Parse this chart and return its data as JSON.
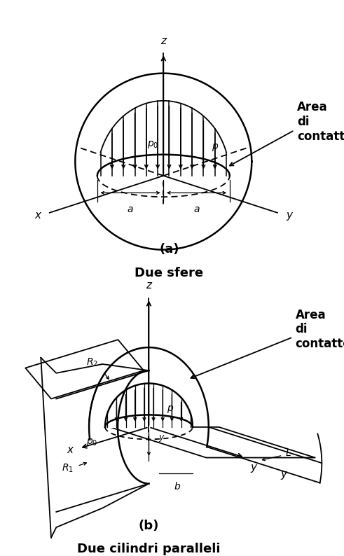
{
  "fig_width": 4.91,
  "fig_height": 7.94,
  "dpi": 100,
  "bg_color": "#ffffff",
  "label_a": "(a)",
  "label_a_title": "Due sfere",
  "label_b": "(b)",
  "label_b_title": "Due cilindri paralleli",
  "area_label": "Area\ndi\ncontatto"
}
